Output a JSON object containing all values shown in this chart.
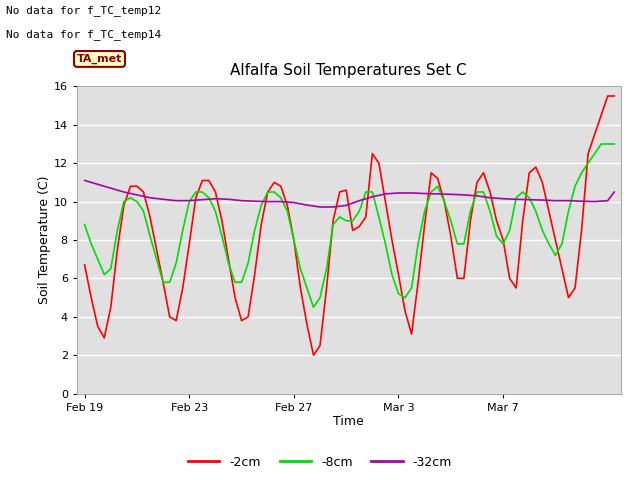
{
  "title": "Alfalfa Soil Temperatures Set C",
  "xlabel": "Time",
  "ylabel": "Soil Temperature (C)",
  "annotations": [
    "No data for f_TC_temp12",
    "No data for f_TC_temp14"
  ],
  "legend_box_label": "TA_met",
  "ylim": [
    0,
    16
  ],
  "yticks": [
    0,
    2,
    4,
    6,
    8,
    10,
    12,
    14,
    16
  ],
  "xtick_labels": [
    "Feb 19",
    "Feb 23",
    "Feb 27",
    "Mar 3",
    "Mar 7"
  ],
  "xtick_positions": [
    0,
    4,
    8,
    12,
    16
  ],
  "xlim": [
    -0.3,
    20.5
  ],
  "bg_color": "#e0e0e0",
  "fig_color": "#ffffff",
  "line_colors": {
    "2cm": "#ff0000",
    "8cm": "#00dd00",
    "32cm": "#aa00aa"
  },
  "legend_labels": [
    "-2cm",
    "-8cm",
    "-32cm"
  ],
  "legend_colors": [
    "#ff0000",
    "#00dd00",
    "#aa00aa"
  ],
  "x_2cm": [
    0,
    0.25,
    0.5,
    0.75,
    1.0,
    1.25,
    1.5,
    1.75,
    2.0,
    2.25,
    2.5,
    2.75,
    3.0,
    3.25,
    3.5,
    3.75,
    4.0,
    4.25,
    4.5,
    4.75,
    5.0,
    5.25,
    5.5,
    5.75,
    6.0,
    6.25,
    6.5,
    6.75,
    7.0,
    7.25,
    7.5,
    7.75,
    8.0,
    8.25,
    8.5,
    8.75,
    9.0,
    9.25,
    9.5,
    9.75,
    10.0,
    10.25,
    10.5,
    10.75,
    11.0,
    11.25,
    11.5,
    11.75,
    12.0,
    12.25,
    12.5,
    12.75,
    13.0,
    13.25,
    13.5,
    13.75,
    14.0,
    14.25,
    14.5,
    14.75,
    15.0,
    15.25,
    15.5,
    15.75,
    16.0,
    16.25,
    16.5,
    16.75,
    17.0,
    17.25,
    17.5,
    17.75,
    18.0,
    18.25,
    18.5,
    18.75,
    19.0,
    19.25,
    19.5,
    19.75,
    20.0,
    20.25
  ],
  "y_2cm": [
    6.7,
    5.0,
    3.5,
    2.9,
    4.5,
    7.5,
    9.8,
    10.8,
    10.8,
    10.5,
    9.2,
    7.5,
    5.8,
    4.0,
    3.8,
    5.5,
    7.8,
    10.2,
    11.1,
    11.1,
    10.5,
    9.0,
    7.0,
    5.0,
    3.8,
    4.0,
    6.2,
    8.8,
    10.5,
    11.0,
    10.8,
    9.8,
    8.0,
    5.5,
    3.6,
    2.0,
    2.5,
    5.5,
    9.0,
    10.5,
    10.6,
    8.5,
    8.7,
    9.2,
    12.5,
    12.0,
    10.0,
    8.0,
    6.2,
    4.3,
    3.1,
    5.8,
    8.8,
    11.5,
    11.2,
    10.0,
    8.2,
    6.0,
    6.0,
    9.0,
    11.0,
    11.5,
    10.5,
    9.0,
    8.0,
    6.0,
    5.5,
    9.0,
    11.5,
    11.8,
    11.0,
    9.5,
    8.0,
    6.5,
    5.0,
    5.5,
    8.5,
    12.5,
    13.5,
    14.5,
    15.5,
    15.5
  ],
  "x_8cm": [
    0,
    0.25,
    0.5,
    0.75,
    1.0,
    1.25,
    1.5,
    1.75,
    2.0,
    2.25,
    2.5,
    2.75,
    3.0,
    3.25,
    3.5,
    3.75,
    4.0,
    4.25,
    4.5,
    4.75,
    5.0,
    5.25,
    5.5,
    5.75,
    6.0,
    6.25,
    6.5,
    6.75,
    7.0,
    7.25,
    7.5,
    7.75,
    8.0,
    8.25,
    8.5,
    8.75,
    9.0,
    9.25,
    9.5,
    9.75,
    10.0,
    10.25,
    10.5,
    10.75,
    11.0,
    11.25,
    11.5,
    11.75,
    12.0,
    12.25,
    12.5,
    12.75,
    13.0,
    13.25,
    13.5,
    13.75,
    14.0,
    14.25,
    14.5,
    14.75,
    15.0,
    15.25,
    15.5,
    15.75,
    16.0,
    16.25,
    16.5,
    16.75,
    17.0,
    17.25,
    17.5,
    17.75,
    18.0,
    18.25,
    18.5,
    18.75,
    19.0,
    19.25,
    19.5,
    19.75,
    20.0,
    20.25
  ],
  "y_8cm": [
    8.8,
    7.8,
    7.0,
    6.2,
    6.5,
    8.5,
    10.0,
    10.2,
    10.0,
    9.5,
    8.2,
    7.0,
    5.8,
    5.8,
    6.8,
    8.5,
    10.0,
    10.5,
    10.5,
    10.2,
    9.5,
    8.2,
    6.8,
    5.8,
    5.8,
    6.8,
    8.5,
    9.8,
    10.5,
    10.5,
    10.2,
    9.5,
    8.0,
    6.5,
    5.5,
    4.5,
    5.0,
    6.5,
    8.8,
    9.2,
    9.0,
    9.0,
    9.5,
    10.5,
    10.5,
    9.2,
    7.8,
    6.2,
    5.2,
    5.0,
    5.5,
    7.8,
    9.5,
    10.5,
    10.8,
    10.0,
    9.0,
    7.8,
    7.8,
    9.5,
    10.5,
    10.5,
    9.5,
    8.2,
    7.8,
    8.5,
    10.2,
    10.5,
    10.2,
    9.5,
    8.5,
    7.8,
    7.2,
    7.8,
    9.5,
    10.8,
    11.5,
    12.0,
    12.5,
    13.0,
    13.0,
    13.0
  ],
  "x_32cm": [
    0,
    0.5,
    1.0,
    1.5,
    2.0,
    2.5,
    3.0,
    3.5,
    4.0,
    4.5,
    5.0,
    5.5,
    6.0,
    6.5,
    7.0,
    7.5,
    8.0,
    8.5,
    9.0,
    9.5,
    10.0,
    10.5,
    11.0,
    11.5,
    12.0,
    12.5,
    13.0,
    13.5,
    14.0,
    14.5,
    15.0,
    15.5,
    16.0,
    16.5,
    17.0,
    17.5,
    18.0,
    18.5,
    19.0,
    19.5,
    20.0,
    20.25
  ],
  "y_32cm": [
    11.1,
    10.9,
    10.7,
    10.5,
    10.35,
    10.2,
    10.12,
    10.05,
    10.05,
    10.1,
    10.15,
    10.12,
    10.05,
    10.02,
    10.0,
    10.0,
    9.95,
    9.82,
    9.72,
    9.72,
    9.8,
    10.05,
    10.25,
    10.4,
    10.45,
    10.45,
    10.42,
    10.4,
    10.38,
    10.35,
    10.3,
    10.2,
    10.15,
    10.12,
    10.1,
    10.08,
    10.05,
    10.05,
    10.02,
    10.0,
    10.05,
    10.5
  ]
}
